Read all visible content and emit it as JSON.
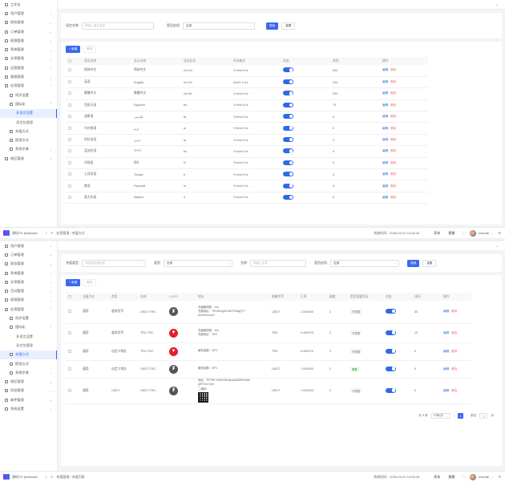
{
  "panel1": {
    "sidebar": [
      {
        "label": "工作台",
        "level": 1,
        "chev": ""
      },
      {
        "label": "用户管理",
        "level": 1,
        "chev": "⌄"
      },
      {
        "label": "财务管理",
        "level": 1,
        "chev": "⌄"
      },
      {
        "label": "订单管理",
        "level": 1,
        "chev": "⌄"
      },
      {
        "label": "权限管理",
        "level": 1,
        "chev": "⌄"
      },
      {
        "label": "系统管理",
        "level": 1,
        "chev": "⌄"
      },
      {
        "label": "文章管理",
        "level": 1,
        "chev": "⌄"
      },
      {
        "label": "运营管理",
        "level": 1,
        "chev": "⌄"
      },
      {
        "label": "客服管理",
        "level": 1,
        "chev": "⌄"
      },
      {
        "label": "应用管理",
        "level": 1,
        "chev": "⌃"
      },
      {
        "label": "同步设置",
        "level": 2,
        "chev": ""
      },
      {
        "label": "国际化",
        "level": 2,
        "chev": "⌃"
      },
      {
        "label": "多语言设置",
        "level": 3,
        "chev": "",
        "active": true
      },
      {
        "label": "语言包管理",
        "level": 3,
        "chev": ""
      },
      {
        "label": "充值方式",
        "level": 2,
        "chev": ""
      },
      {
        "label": "提现方式",
        "level": 2,
        "chev": ""
      },
      {
        "label": "系统字典",
        "level": 2,
        "chev": "⌄"
      },
      {
        "label": "地区管理",
        "level": 1,
        "chev": "⌄"
      }
    ],
    "filter": {
      "name_label": "语言名称",
      "name_placeholder": "请输入语言名称",
      "status_label": "是否启用",
      "status_value": "全部",
      "search_btn": "搜索",
      "reset_btn": "重置"
    },
    "toolbar": {
      "add": "+ 新增",
      "delete": "删除"
    },
    "columns": [
      "语言名称",
      "显示名称",
      "语言标识",
      "时间格式",
      "状态",
      "排序",
      "操作"
    ],
    "rows": [
      {
        "name": "简体中文",
        "display": "简体中文",
        "code": "zh-CN",
        "fmt": "Y/m/d H:i:s",
        "sort": "200",
        "ops": [
          "编辑",
          "删除"
        ]
      },
      {
        "name": "英语",
        "display": "English",
        "code": "en-US",
        "fmt": "m/d/Y H:i:s",
        "sort": "220",
        "ops": [
          "编辑",
          "删除"
        ]
      },
      {
        "name": "繁體中文",
        "display": "繁體中文",
        "code": "zh-HK",
        "fmt": "Y/m/d H:i:s",
        "sort": "200",
        "ops": [
          "编辑",
          "删除"
        ]
      },
      {
        "name": "西班牙语",
        "display": "Español",
        "code": "es",
        "fmt": "Y/m/d H:i:s",
        "sort": "70",
        "ops": [
          "编辑",
          "删除"
        ]
      },
      {
        "name": "波斯语",
        "display": "فارسی",
        "code": "fa",
        "fmt": "Y/m/d H:i:s",
        "sort": "0",
        "ops": [
          "编辑",
          "删除"
        ]
      },
      {
        "name": "乌尔都语",
        "display": "اردو",
        "code": "ur",
        "fmt": "Y/m/d H:i:s",
        "sort": "0",
        "ops": [
          "编辑",
          "删除"
        ]
      },
      {
        "name": "阿拉伯语",
        "display": "عربي",
        "code": "ar",
        "fmt": "Y/m/d H:i:s",
        "sort": "0",
        "ops": [
          "编辑",
          "删除"
        ]
      },
      {
        "name": "孟加拉语",
        "display": "বাংলা",
        "code": "bn",
        "fmt": "Y/m/d H:i:s",
        "sort": "0",
        "ops": [
          "编辑",
          "删除"
        ]
      },
      {
        "name": "印地语",
        "display": "हिंदी",
        "code": "hi",
        "fmt": "Y/m/d H:i:s",
        "sort": "0",
        "ops": [
          "编辑",
          "删除"
        ]
      },
      {
        "name": "土耳其语",
        "display": "Türkçe",
        "code": "tr",
        "fmt": "Y/m/d H:i:s",
        "sort": "0",
        "ops": [
          "编辑",
          "删除"
        ]
      },
      {
        "name": "俄语",
        "display": "Русский",
        "code": "ru",
        "fmt": "Y/m/d H:i:s",
        "sort": "0",
        "ops": [
          "编辑",
          "删除"
        ]
      },
      {
        "name": "意大利语",
        "display": "Italiano",
        "code": "it",
        "fmt": "Y/m/d H:i:s",
        "sort": "0",
        "ops": [
          "编辑",
          "删除"
        ]
      }
    ],
    "footer": {
      "brand": "源码TG @mlcode",
      "breadcrumb": "应用管理 / 充值方式",
      "time": "系统时间：2026-04-20 13:48:32",
      "lang": "简体",
      "font": "繁體",
      "user": "mlcode"
    }
  },
  "panel2": {
    "sidebar": [
      {
        "label": "用户管理",
        "level": 1,
        "chev": "⌄"
      },
      {
        "label": "订单管理",
        "level": 1,
        "chev": "⌄"
      },
      {
        "label": "财务管理",
        "level": 1,
        "chev": "⌄"
      },
      {
        "label": "系统管理",
        "level": 1,
        "chev": "⌄"
      },
      {
        "label": "文章管理",
        "level": 1,
        "chev": "⌄"
      },
      {
        "label": "活动管理",
        "level": 1,
        "chev": "⌄"
      },
      {
        "label": "权限管理",
        "level": 1,
        "chev": "⌄"
      },
      {
        "label": "应用管理",
        "level": 1,
        "chev": "⌃"
      },
      {
        "label": "同步设置",
        "level": 2,
        "chev": ""
      },
      {
        "label": "国际化",
        "level": 2,
        "chev": "⌃"
      },
      {
        "label": "多语言设置",
        "level": 3,
        "chev": ""
      },
      {
        "label": "语言包管理",
        "level": 3,
        "chev": ""
      },
      {
        "label": "充值方式",
        "level": 2,
        "chev": "",
        "active": true
      },
      {
        "label": "提现方式",
        "level": 2,
        "chev": ""
      },
      {
        "label": "系统字典",
        "level": 2,
        "chev": "⌄"
      },
      {
        "label": "地区管理",
        "level": 1,
        "chev": "⌄"
      },
      {
        "label": "短信管理",
        "level": 1,
        "chev": "⌄"
      },
      {
        "label": "邮件管理",
        "level": 1,
        "chev": "⌄"
      },
      {
        "label": "系统设置",
        "level": 1,
        "chev": "⌄"
      }
    ],
    "filter": {
      "type_label": "充值类型",
      "type_placeholder": "请选择充值类型",
      "cat_label": "类别",
      "cat_value": "全部",
      "name_label": "名称",
      "name_placeholder": "请输入名称",
      "status_label": "是否启用",
      "status_value": "全部",
      "search_btn": "搜索",
      "reset_btn": "重置"
    },
    "toolbar": {
      "add": "+ 新增",
      "delete": "删除"
    },
    "columns": [
      "充值方式",
      "类型",
      "名称",
      "LOGO",
      "地址",
      "结算货币",
      "汇率",
      "精度",
      "是否需要凭证",
      "状态",
      "排序",
      "操作"
    ],
    "rows": [
      {
        "method": "通用",
        "type": "虚拟货币",
        "name": "USDT-TRC",
        "logo": "usdt",
        "addr": [
          "充值最低额：10u",
          "充值地址：TRCNhxgHtOdOTGiNgQTY",
          "AsHnfUmzuN"
        ],
        "currency": "USDT",
        "rate": "1.000000",
        "prec": "2",
        "voucher": "不需要",
        "voucher_tag": "no",
        "sort": "30",
        "ops": [
          "编辑",
          "删除"
        ]
      },
      {
        "method": "通用",
        "type": "虚拟货币",
        "name": "TRX-TRC",
        "logo": "trx",
        "addr": [
          "充值最低额：10u",
          "充值地址：TDS"
        ],
        "currency": "TRX",
        "rate": "4.490070",
        "prec": "2",
        "voucher": "不需要",
        "voucher_tag": "no",
        "sort": "10",
        "ops": [
          "编辑",
          "删除"
        ]
      },
      {
        "method": "通用",
        "type": "自定义地址",
        "name": "TRX-TRC",
        "logo": "trx",
        "addr": [
          "最低金额：VIP1"
        ],
        "currency": "TRX",
        "rate": "4.490070",
        "prec": "2",
        "voucher": "不需要",
        "voucher_tag": "no",
        "sort": "0",
        "ops": [
          "编辑",
          "删除"
        ]
      },
      {
        "method": "通用",
        "type": "自定义地址",
        "name": "USDT-TRC...",
        "logo": "usdt",
        "addr": [
          "最低金额：VIP1"
        ],
        "currency": "USDT",
        "rate": "1.000000",
        "prec": "2",
        "voucher": "需要",
        "voucher_tag": "yes",
        "sort": "0",
        "ops": [
          "编辑",
          "删除"
        ]
      },
      {
        "method": "通用",
        "type": "USDT",
        "name": "USDT-TRC...",
        "logo": "usdt",
        "addr": [
          "地址：TRT9iK NHdFzSKqbQAM6SEKsNtU",
          "gHPm1x7qm",
          "二维码："
        ],
        "currency": "USDT",
        "rate": "1.000000",
        "prec": "2",
        "voucher": "不需要",
        "voucher_tag": "no",
        "sort": "0",
        "ops": [
          "编辑",
          "删除"
        ],
        "qr": true
      }
    ],
    "pager": {
      "total": "共 5 条",
      "size": "10条/页",
      "page": "1",
      "goto": "前往",
      "goto_val": "1",
      "unit": "页"
    },
    "footer": {
      "brand": "源码TG @mlcode",
      "breadcrumb": "充值管理 / 充值列表",
      "time": "系统时间：2026-04-20 13:48:44",
      "lang": "简体",
      "font": "繁體",
      "user": "mlcode"
    }
  },
  "icons": {
    "chevron": "⌄",
    "refresh": "⟳",
    "fullscreen": "⛶",
    "settings": "⚙",
    "search_arrow": "›"
  }
}
